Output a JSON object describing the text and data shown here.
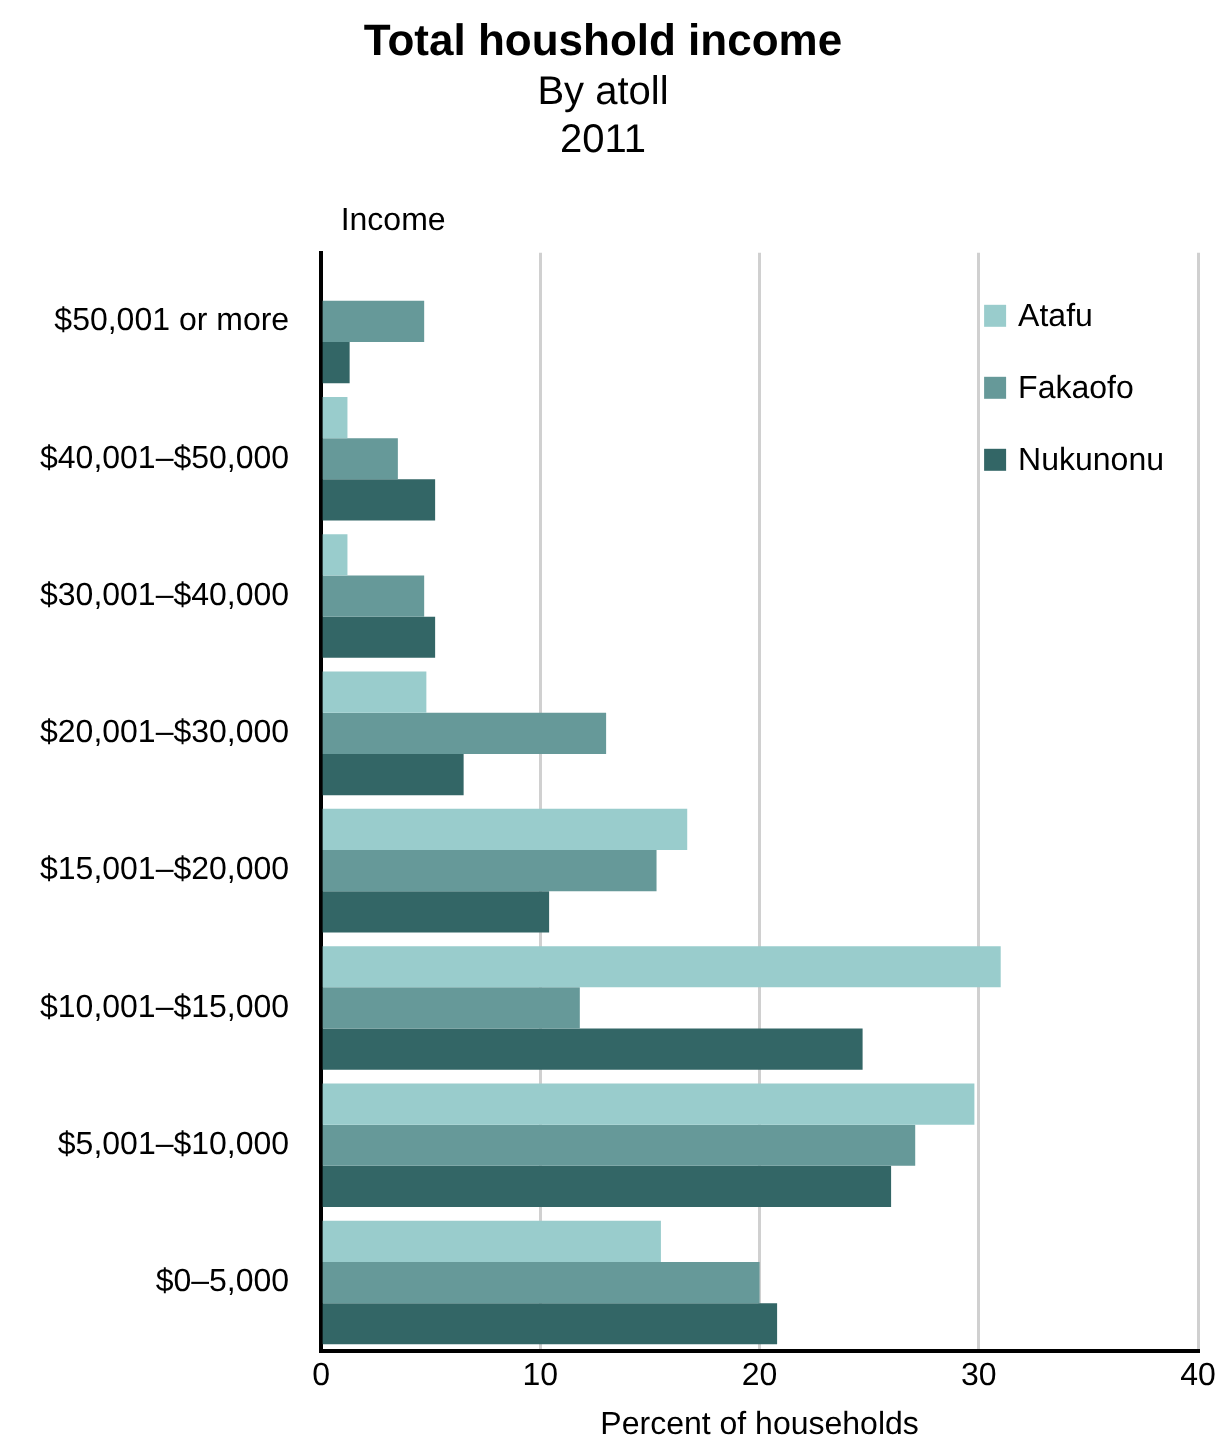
{
  "chart_data": {
    "type": "bar",
    "orientation": "horizontal",
    "title": "Total houshold income",
    "subtitle": "By atoll\n2011",
    "ylabel": "Income",
    "xlabel": "Percent of households",
    "categories": [
      "$50,001 or more",
      "$40,001–$50,000",
      "$30,001–$40,000",
      "$20,001–$30,000",
      "$15,001–$20,000",
      "$10,001–$15,000",
      "$5,001–$10,000",
      "$0–5,000"
    ],
    "series": [
      {
        "name": "Atafu",
        "color": "#99cccc",
        "values": [
          0,
          1.2,
          1.2,
          4.8,
          16.7,
          31.0,
          29.8,
          15.5
        ]
      },
      {
        "name": "Fakaofo",
        "color": "#669999",
        "values": [
          4.7,
          3.5,
          4.7,
          13.0,
          15.3,
          11.8,
          27.1,
          20.0
        ]
      },
      {
        "name": "Nukunonu",
        "color": "#336666",
        "values": [
          1.3,
          5.2,
          5.2,
          6.5,
          10.4,
          24.7,
          26.0,
          20.8
        ]
      }
    ],
    "xlim": [
      0,
      40
    ],
    "xticks": [
      0,
      10,
      20,
      30,
      40
    ],
    "grid": "x",
    "legend": "top right"
  }
}
